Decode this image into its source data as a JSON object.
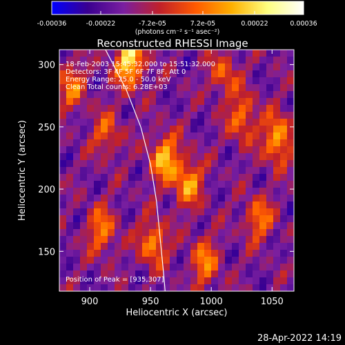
{
  "colorbar": {
    "ticks": [
      "-0.00036",
      "-0.00022",
      "-7.2e-05",
      "7.2e-05",
      "0.00022",
      "0.00036"
    ],
    "tick_values": [
      -0.00036,
      -0.00022,
      -7.2e-05,
      7.2e-05,
      0.00022,
      0.00036
    ],
    "range": [
      -0.00036,
      0.00036
    ],
    "unit_label": "(photons cm⁻² s⁻¹ asec⁻²)",
    "colors": [
      "#0000ff",
      "#3a0090",
      "#7a1fa0",
      "#c0202a",
      "#ff5a00",
      "#ffb000",
      "#ffff80",
      "#ffffff"
    ]
  },
  "chart_data": {
    "type": "heatmap",
    "title": "Reconstructed RHESSI Image",
    "xlabel": "Heliocentric X (arcsec)",
    "ylabel": "Heliocentric Y (arcsec)",
    "xlim": [
      875,
      1068
    ],
    "ylim": [
      118,
      312
    ],
    "xticks": [
      900,
      950,
      1000,
      1050
    ],
    "yticks": [
      150,
      200,
      250,
      300
    ],
    "xtick_labels": [
      "900",
      "950",
      "1000",
      "1050"
    ],
    "ytick_labels": [
      "150",
      "200",
      "250",
      "300"
    ],
    "annotations": [
      "18-Feb-2003 15:45:32.000 to 15:51:32.000",
      "Detectors: 3F 4F 5F 6F 7F 8F, Att 0",
      "Energy Range: 25.0 - 50.0 keV",
      "Clean   Total counts: 6.28E+03"
    ],
    "peak_label": "Position of Peak = [935,307]",
    "peak": [
      935,
      307
    ],
    "limb_points": [
      [
        913,
        312
      ],
      [
        930,
        280
      ],
      [
        942,
        250
      ],
      [
        950,
        220
      ],
      [
        955,
        190
      ],
      [
        958,
        160
      ],
      [
        961,
        130
      ],
      [
        962,
        118
      ]
    ],
    "limb_color": "#ffffff"
  },
  "footer": {
    "timestamp": "28-Apr-2022 14:19"
  }
}
